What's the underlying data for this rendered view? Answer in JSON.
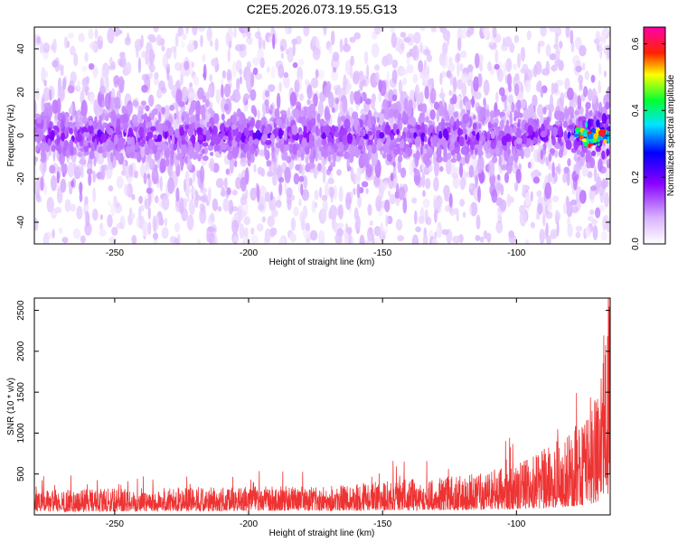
{
  "figure_title": "C2E5.2026.073.19.55.G13",
  "chart_data": [
    {
      "type": "heatmap",
      "xlabel": "Height of straight line (km)",
      "ylabel": "Frequency (Hz)",
      "xlim": [
        -280,
        -65
      ],
      "ylim": [
        -50,
        50
      ],
      "xticks": [
        -250,
        -200,
        -150,
        -100
      ],
      "xtick_labels": [
        "-250",
        "-200",
        "-150",
        "-100"
      ],
      "yticks": [
        -40,
        -20,
        0,
        20,
        40
      ],
      "ytick_labels": [
        "-40",
        "-20",
        "0",
        "20",
        "40"
      ],
      "colorbar": {
        "label": "Normalized spectral amplitude",
        "range": [
          0.0,
          0.65
        ],
        "ticks": [
          0.0,
          0.2,
          0.4,
          0.6
        ],
        "tick_labels": [
          "0.0",
          "0.2",
          "0.4",
          "0.6"
        ],
        "colormap": "rainbow (white-violet-blue-cyan-green-yellow-red-magenta)"
      },
      "ridge": {
        "center_frequency_hz": 0,
        "band_halfwidth_hz": 10,
        "typical_amplitude": 0.15,
        "max_amplitude": 0.6,
        "max_at_height_km": -66
      },
      "grid": false
    },
    {
      "type": "line",
      "xlabel": "Height of straight line (km)",
      "ylabel": "SNR (10 * v/v)",
      "xlim": [
        -280,
        -65
      ],
      "ylim": [
        0,
        2650
      ],
      "xticks": [
        -250,
        -200,
        -150,
        -100
      ],
      "xtick_labels": [
        "-250",
        "-200",
        "-150",
        "-100"
      ],
      "yticks": [
        500,
        1000,
        1500,
        2000,
        2500
      ],
      "ytick_labels": [
        "500",
        "1000",
        "1500",
        "2000",
        "2500"
      ],
      "color": "#ee3333",
      "series": [
        {
          "x": [
            -280,
            -260,
            -240,
            -220,
            -200,
            -180,
            -160,
            -150,
            -140,
            -120,
            -110,
            -100,
            -90,
            -80,
            -75,
            -70,
            -67,
            -66
          ],
          "y_floor": [
            40,
            40,
            45,
            45,
            50,
            50,
            50,
            55,
            55,
            60,
            60,
            70,
            80,
            100,
            120,
            150,
            200,
            250
          ],
          "y_envelope": [
            300,
            320,
            330,
            340,
            350,
            360,
            380,
            420,
            440,
            480,
            540,
            620,
            800,
            1000,
            1300,
            1600,
            2300,
            2550
          ]
        }
      ],
      "grid": false
    }
  ]
}
